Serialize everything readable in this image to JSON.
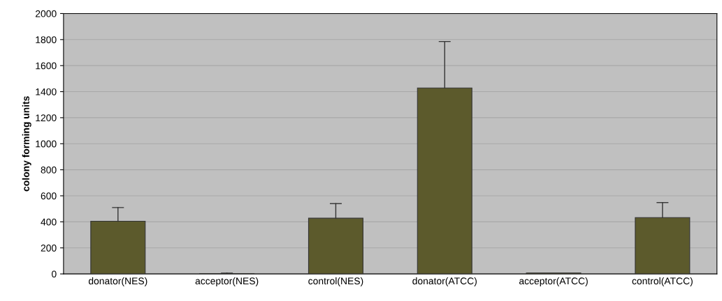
{
  "chart_data": {
    "type": "bar",
    "ylabel": "colony forming units",
    "categories": [
      "donator(NES)",
      "acceptor(NES)",
      "control(NES)",
      "donator(ATCC)",
      "acceptor(ATCC)",
      "control(ATCC)"
    ],
    "values": [
      405,
      2,
      428,
      1428,
      7,
      433
    ],
    "errors": [
      [
        405,
        510
      ],
      [
        2,
        6
      ],
      [
        428,
        540
      ],
      [
        1428,
        1785
      ],
      null,
      [
        433,
        548
      ]
    ],
    "color": "#5c5a2c",
    "ylim": [
      0,
      2000
    ],
    "yticks": [
      0,
      200,
      400,
      600,
      800,
      1000,
      1200,
      1400,
      1600,
      1800,
      2000
    ],
    "grid": "y"
  }
}
